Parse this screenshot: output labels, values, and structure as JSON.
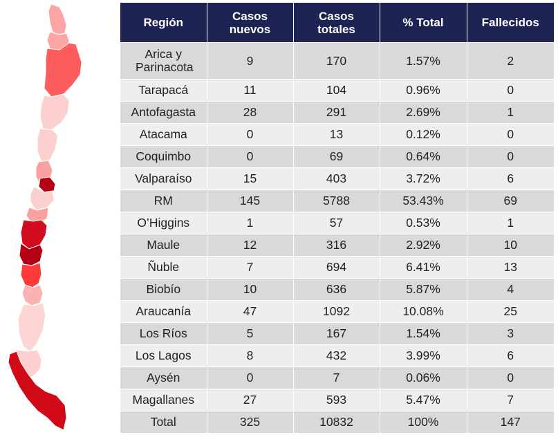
{
  "chart_data": {
    "type": "table",
    "columns": [
      "Región",
      "Casos nuevos",
      "Casos totales",
      "% Total",
      "Fallecidos"
    ],
    "rows": [
      [
        "Arica y Parinacota",
        "9",
        "170",
        "1.57%",
        "2"
      ],
      [
        "Tarapacá",
        "11",
        "104",
        "0.96%",
        "0"
      ],
      [
        "Antofagasta",
        "28",
        "291",
        "2.69%",
        "1"
      ],
      [
        "Atacama",
        "0",
        "13",
        "0.12%",
        "0"
      ],
      [
        "Coquimbo",
        "0",
        "69",
        "0.64%",
        "0"
      ],
      [
        "Valparaíso",
        "15",
        "403",
        "3.72%",
        "6"
      ],
      [
        "RM",
        "145",
        "5788",
        "53.43%",
        "69"
      ],
      [
        "O’Higgins",
        "1",
        "57",
        "0.53%",
        "1"
      ],
      [
        "Maule",
        "12",
        "316",
        "2.92%",
        "10"
      ],
      [
        "Ñuble",
        "7",
        "694",
        "6.41%",
        "13"
      ],
      [
        "Biobío",
        "10",
        "636",
        "5.87%",
        "4"
      ],
      [
        "Araucanía",
        "47",
        "1092",
        "10.08%",
        "25"
      ],
      [
        "Los Ríos",
        "5",
        "167",
        "1.54%",
        "3"
      ],
      [
        "Los Lagos",
        "8",
        "432",
        "3.99%",
        "6"
      ],
      [
        "Aysén",
        "0",
        "7",
        "0.06%",
        "0"
      ],
      [
        "Magallanes",
        "27",
        "593",
        "5.47%",
        "7"
      ],
      [
        "Total",
        "325",
        "10832",
        "100%",
        "147"
      ]
    ],
    "map_regions": [
      {
        "region": "Arica y Parinacota",
        "color": "#fba5a5"
      },
      {
        "region": "Tarapacá",
        "color": "#fba5a5"
      },
      {
        "region": "Antofagasta",
        "color": "#fd5d5d"
      },
      {
        "region": "Atacama",
        "color": "#fdd0d0"
      },
      {
        "region": "Coquimbo",
        "color": "#fdd0d0"
      },
      {
        "region": "Valparaíso",
        "color": "#fba0a0"
      },
      {
        "region": "RM",
        "color": "#b50014"
      },
      {
        "region": "O’Higgins",
        "color": "#fdd0d0"
      },
      {
        "region": "Maule",
        "color": "#fba0a0"
      },
      {
        "region": "Ñuble",
        "color": "#d10d1f"
      },
      {
        "region": "Biobío",
        "color": "#b30014"
      },
      {
        "region": "Araucanía",
        "color": "#ff3a3a"
      },
      {
        "region": "Los Ríos",
        "color": "#fbb2b2"
      },
      {
        "region": "Los Lagos",
        "color": "#fdd5d5"
      },
      {
        "region": "Aysén",
        "color": "#fdd0d0"
      },
      {
        "region": "Magallanes",
        "color": "#d10a18"
      }
    ]
  }
}
